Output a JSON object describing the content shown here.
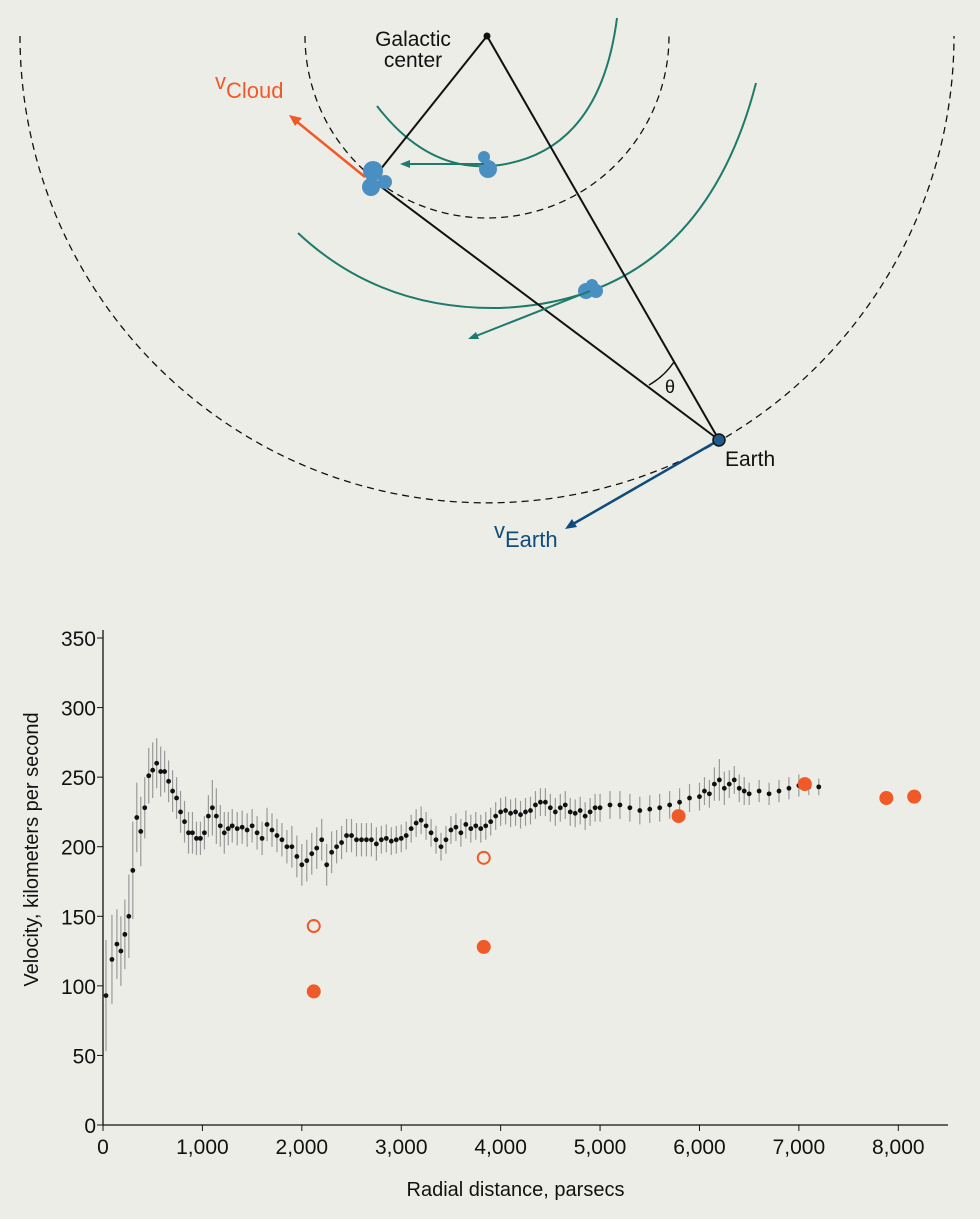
{
  "diagram": {
    "galactic_center": [
      "Galactic",
      "center"
    ],
    "v_cloud": {
      "symbol": "v",
      "subscript": "Cloud"
    },
    "v_earth": {
      "symbol": "v",
      "subscript": "Earth"
    },
    "earth": "Earth",
    "angle": "θ"
  },
  "chart_data": {
    "type": "scatter",
    "xlabel": "Radial distance, parsecs",
    "ylabel": "Velocity, kilometers per second",
    "xlim": [
      0,
      8500
    ],
    "ylim": [
      0,
      350
    ],
    "xticks": [
      0,
      {
        "value": 1000,
        "label": "1,000"
      },
      {
        "value": 2000,
        "label": "2,000"
      },
      {
        "value": 3000,
        "label": "3,000"
      },
      {
        "value": 4000,
        "label": "4,000"
      },
      {
        "value": 5000,
        "label": "5,000"
      },
      {
        "value": 6000,
        "label": "6,000"
      },
      {
        "value": 7000,
        "label": "7,000"
      },
      {
        "value": 8000,
        "label": "8,000"
      }
    ],
    "yticks": [
      0,
      50,
      100,
      150,
      200,
      250,
      300,
      350
    ],
    "series": [
      {
        "color": "#111111",
        "error_color": "#999999",
        "marker": "dot",
        "x": [
          30,
          90,
          140,
          180,
          220,
          260,
          300,
          340,
          380,
          420,
          460,
          500,
          540,
          580,
          620,
          660,
          700,
          740,
          780,
          820,
          860,
          900,
          940,
          980,
          1020,
          1060,
          1100,
          1140,
          1180,
          1220,
          1260,
          1300,
          1350,
          1400,
          1450,
          1500,
          1550,
          1600,
          1650,
          1700,
          1750,
          1800,
          1850,
          1900,
          1950,
          2000,
          2050,
          2100,
          2150,
          2200,
          2250,
          2300,
          2350,
          2400,
          2450,
          2500,
          2550,
          2600,
          2650,
          2700,
          2750,
          2800,
          2850,
          2900,
          2950,
          3000,
          3050,
          3100,
          3150,
          3200,
          3250,
          3300,
          3350,
          3400,
          3450,
          3500,
          3550,
          3600,
          3650,
          3700,
          3750,
          3800,
          3850,
          3900,
          3950,
          4000,
          4050,
          4100,
          4150,
          4200,
          4250,
          4300,
          4350,
          4400,
          4450,
          4500,
          4550,
          4600,
          4650,
          4700,
          4750,
          4800,
          4850,
          4900,
          4950,
          5000,
          5100,
          5200,
          5300,
          5400,
          5500,
          5600,
          5700,
          5800,
          5900,
          6000,
          6050,
          6100,
          6150,
          6200,
          6250,
          6300,
          6350,
          6400,
          6450,
          6500,
          6600,
          6700,
          6800,
          6900,
          7000,
          7100,
          7200
        ],
        "values": [
          93,
          119,
          130,
          125,
          137,
          150,
          183,
          221,
          211,
          228,
          251,
          255,
          260,
          254,
          254,
          247,
          240,
          235,
          225,
          218,
          210,
          210,
          206,
          206,
          210,
          222,
          228,
          222,
          215,
          210,
          213,
          215,
          213,
          214,
          212,
          215,
          210,
          206,
          216,
          212,
          208,
          205,
          200,
          200,
          193,
          187,
          190,
          195,
          199,
          205,
          187,
          196,
          200,
          203,
          208,
          208,
          205,
          205,
          205,
          205,
          202,
          205,
          206,
          204,
          205,
          206,
          208,
          213,
          217,
          219,
          215,
          210,
          205,
          200,
          205,
          212,
          214,
          210,
          216,
          213,
          215,
          213,
          215,
          218,
          222,
          225,
          226,
          224,
          225,
          223,
          225,
          226,
          230,
          232,
          232,
          228,
          225,
          228,
          230,
          225,
          224,
          226,
          222,
          225,
          228,
          228,
          230,
          230,
          228,
          226,
          227,
          228,
          230,
          232,
          235,
          236,
          240,
          238,
          245,
          248,
          242,
          245,
          248,
          242,
          240,
          238,
          240,
          238,
          240,
          242,
          244,
          243,
          243
        ],
        "errors": [
          40,
          32,
          25,
          25,
          25,
          30,
          35,
          25,
          25,
          22,
          20,
          20,
          18,
          18,
          15,
          15,
          15,
          15,
          15,
          15,
          15,
          15,
          12,
          12,
          12,
          15,
          20,
          20,
          15,
          15,
          12,
          12,
          12,
          12,
          12,
          12,
          12,
          12,
          12,
          12,
          12,
          12,
          12,
          15,
          15,
          15,
          15,
          15,
          15,
          15,
          15,
          15,
          12,
          12,
          12,
          12,
          12,
          12,
          12,
          12,
          12,
          10,
          10,
          10,
          10,
          10,
          10,
          10,
          10,
          10,
          10,
          10,
          10,
          10,
          10,
          10,
          10,
          10,
          10,
          10,
          10,
          10,
          10,
          10,
          10,
          10,
          10,
          10,
          10,
          10,
          10,
          10,
          10,
          10,
          10,
          10,
          10,
          10,
          10,
          10,
          10,
          10,
          10,
          10,
          10,
          10,
          10,
          10,
          10,
          10,
          10,
          10,
          10,
          10,
          10,
          10,
          10,
          10,
          12,
          15,
          12,
          10,
          10,
          10,
          10,
          8,
          8,
          8,
          8,
          8,
          8,
          6,
          6
        ]
      },
      {
        "color": "#f05a28",
        "marker": "filled",
        "x": [
          2120,
          3830,
          5790,
          7060,
          7880,
          8160
        ],
        "values": [
          96,
          128,
          222,
          245,
          235,
          236
        ]
      },
      {
        "color": "#f05a28",
        "marker": "open",
        "x": [
          2120,
          3830
        ],
        "values": [
          143,
          192
        ]
      }
    ]
  }
}
